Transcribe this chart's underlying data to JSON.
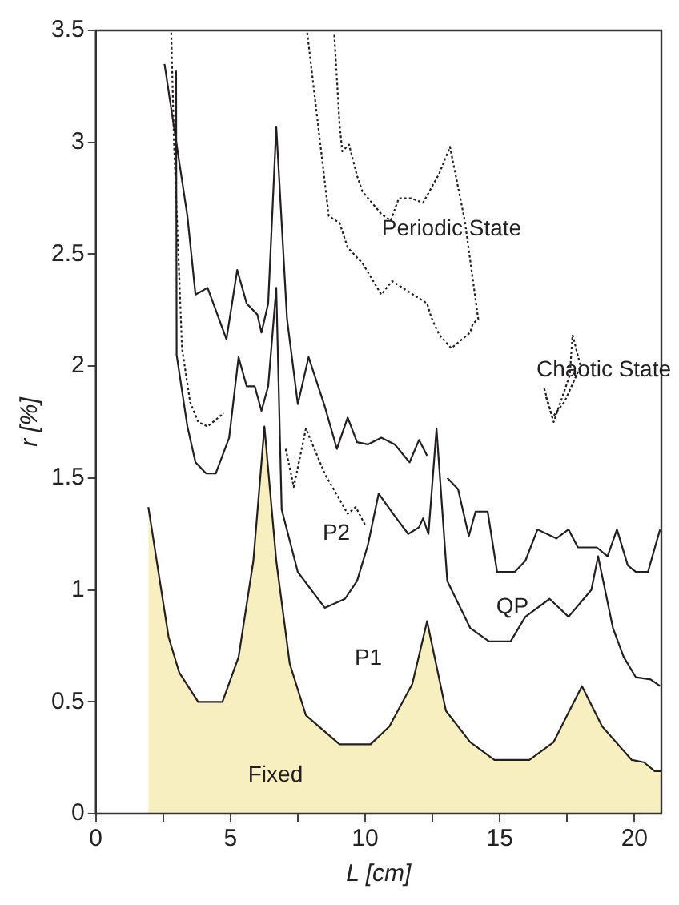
{
  "chart_data": {
    "type": "line",
    "xlabel": "L [cm]",
    "ylabel": "r [%]",
    "xlim": [
      0,
      21
    ],
    "ylim": [
      0,
      3.5
    ],
    "xticks": [
      0,
      {
        "value": 2.5,
        "label": null
      },
      5,
      {
        "value": 7.5,
        "label": null
      },
      10,
      {
        "value": 12.5,
        "label": null
      },
      15,
      {
        "value": 17.5,
        "label": null
      },
      20
    ],
    "yticks": [
      0,
      0.5,
      1,
      1.5,
      2,
      2.5,
      3,
      3.5
    ],
    "grid": false,
    "legend": false,
    "marker": "none",
    "series": [
      {
        "type": "area",
        "color": "#f8efc0",
        "line_style": "solid",
        "x": [
          1.95,
          2.7,
          3.1,
          3.8,
          4.7,
          5.3,
          5.85,
          6.26,
          6.7,
          7.2,
          7.8,
          9.05,
          10.2,
          10.9,
          11.75,
          12.3,
          13.0,
          13.9,
          14.8,
          16.1,
          17.0,
          17.5,
          18.05,
          18.8,
          19.9,
          20.35,
          20.75,
          21
        ],
        "values": [
          1.37,
          0.79,
          0.63,
          0.5,
          0.5,
          0.7,
          1.13,
          1.73,
          1.13,
          0.67,
          0.44,
          0.31,
          0.31,
          0.39,
          0.58,
          0.86,
          0.46,
          0.32,
          0.24,
          0.24,
          0.32,
          0.44,
          0.57,
          0.39,
          0.24,
          0.23,
          0.19,
          0.19
        ]
      },
      {
        "color": "#231f20",
        "line_style": "solid",
        "x": [
          2.98,
          3.0,
          3.4,
          3.7,
          4.1,
          4.45,
          4.95,
          5.3,
          5.6,
          5.9,
          6.15,
          6.4,
          6.7,
          6.9,
          7.5,
          8.5,
          9.25,
          9.7,
          10.1,
          10.5,
          11.1,
          11.6,
          12.0,
          12.15,
          12.35,
          12.65,
          13.05,
          13.9,
          14.6,
          15.4,
          15.95,
          16.85,
          17.55,
          18.4,
          18.65,
          19.2,
          19.6,
          20.05,
          20.6,
          20.95
        ],
        "values": [
          3.32,
          2.05,
          1.73,
          1.57,
          1.52,
          1.52,
          1.68,
          2.04,
          1.91,
          1.91,
          1.8,
          1.91,
          2.35,
          1.36,
          1.08,
          0.92,
          0.96,
          1.04,
          1.2,
          1.43,
          1.33,
          1.25,
          1.28,
          1.32,
          1.25,
          1.72,
          1.04,
          0.83,
          0.77,
          0.77,
          0.88,
          0.96,
          0.88,
          1.0,
          1.15,
          0.83,
          0.7,
          0.61,
          0.6,
          0.57
        ]
      },
      {
        "color": "#231f20",
        "line_style": "solid",
        "x": [
          2.55,
          3.4,
          3.7,
          4.15,
          4.85,
          5.25,
          5.6,
          6.0,
          6.15,
          6.4,
          6.7,
          7.1,
          7.5,
          7.9,
          8.5,
          8.95,
          9.35,
          9.7,
          10.1,
          10.6,
          11.1,
          11.65,
          12.0,
          12.3,
          12.6,
          13.05,
          13.45,
          13.85,
          14.1,
          14.55,
          14.9,
          15.55,
          15.95,
          16.4,
          17.1,
          17.55,
          17.9,
          18.6,
          19.0,
          19.35,
          19.75,
          20.05,
          20.5,
          20.95
        ],
        "values": [
          3.35,
          2.67,
          2.32,
          2.35,
          2.12,
          2.43,
          2.28,
          2.23,
          2.15,
          2.28,
          3.07,
          2.21,
          1.83,
          2.04,
          1.82,
          1.63,
          1.77,
          1.66,
          1.65,
          1.68,
          1.65,
          1.57,
          1.67,
          1.6,
          null,
          1.5,
          1.45,
          1.24,
          1.35,
          1.35,
          1.08,
          1.08,
          1.13,
          1.27,
          1.23,
          1.27,
          1.19,
          1.19,
          1.15,
          1.27,
          1.11,
          1.08,
          1.08,
          1.27
        ]
      },
      {
        "color": "#231f20",
        "line_style": "dotted",
        "x": [
          2.8,
          2.9,
          3.2,
          3.5,
          3.8,
          4.15,
          4.75
        ],
        "values": [
          3.49,
          3.01,
          2.08,
          1.84,
          1.75,
          1.73,
          1.79
        ]
      },
      {
        "color": "#231f20",
        "line_style": "dotted",
        "x": [
          7.05,
          7.35,
          7.8,
          8.5,
          9.35,
          9.65,
          10.0
        ],
        "values": [
          1.63,
          1.46,
          1.72,
          1.52,
          1.34,
          1.37,
          1.29
        ]
      },
      {
        "color": "#231f20",
        "line_style": "dotted",
        "x": [
          7.85,
          8.25,
          8.65,
          9.05,
          9.35,
          9.9,
          10.6,
          11.0,
          12.3,
          12.45,
          12.75,
          13.2,
          13.9,
          14.0,
          14.2,
          13.7,
          13.15,
          12.75,
          12.15,
          11.7,
          11.25,
          10.95,
          10.6,
          9.9,
          9.7,
          9.4,
          9.15,
          9.05,
          8.85
        ],
        "values": [
          3.49,
          3.08,
          2.67,
          2.64,
          2.53,
          2.46,
          2.32,
          2.38,
          2.28,
          2.22,
          2.14,
          2.08,
          2.15,
          2.19,
          2.21,
          2.65,
          2.98,
          2.86,
          2.73,
          2.75,
          2.75,
          2.65,
          2.68,
          2.78,
          2.85,
          2.99,
          2.96,
          3.08,
          3.49
        ]
      },
      {
        "color": "#231f20",
        "line_style": "dotted",
        "x": [
          16.65,
          17.0,
          17.6,
          17.7,
          18.0,
          17.4,
          16.95,
          16.7
        ],
        "values": [
          1.9,
          1.75,
          1.96,
          2.14,
          2.0,
          1.84,
          1.77,
          1.87
        ]
      }
    ],
    "annotations": [
      "Periodic State",
      "Chaotic State",
      "P2",
      "QP",
      "P1",
      "Fixed"
    ]
  }
}
